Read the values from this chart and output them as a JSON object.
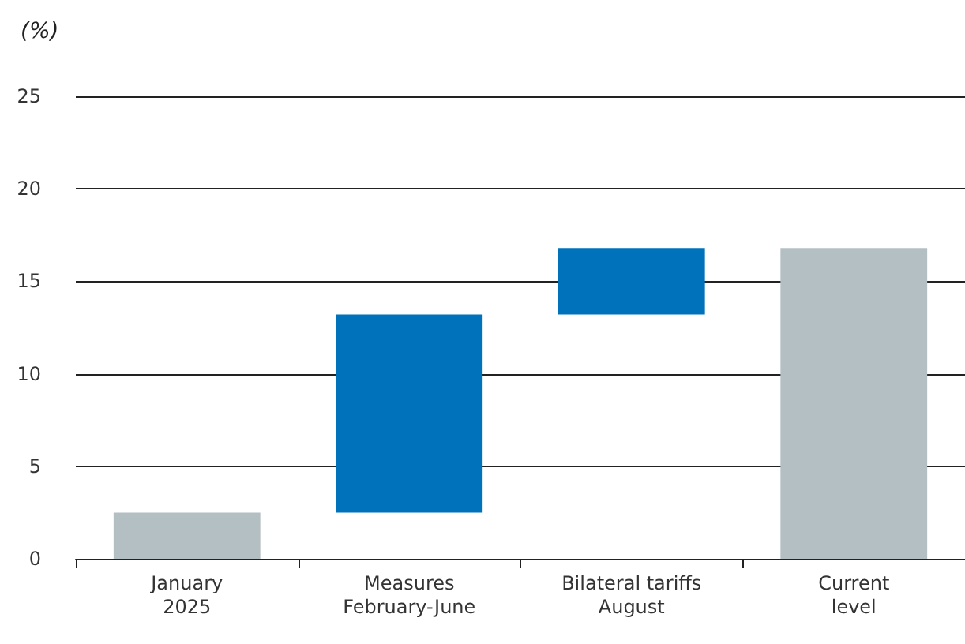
{
  "chart_data": {
    "type": "bar",
    "ylabel": "(%)",
    "categories": [
      "January\n2025",
      "Measures\nFebruary-June",
      "Bilateral tariffs\nAugust",
      "Current\nlevel"
    ],
    "values": [
      2.5,
      10.7,
      3.6,
      16.8
    ],
    "base": [
      0,
      2.5,
      13.2,
      0
    ],
    "colors": [
      "#b3bfc3",
      "#0072bc",
      "#0072bc",
      "#b3bfc3"
    ],
    "ylim": [
      0,
      25
    ],
    "yticks": [
      0,
      5,
      10,
      15,
      20,
      25
    ],
    "grid": "y"
  }
}
